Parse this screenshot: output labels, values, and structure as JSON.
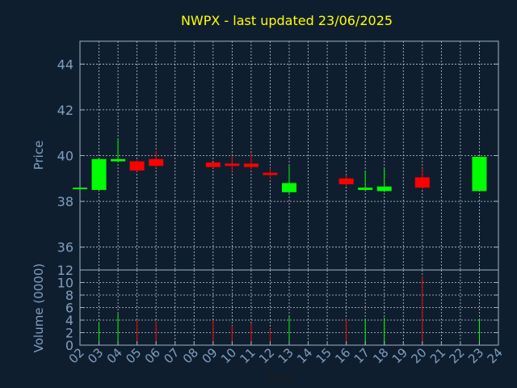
{
  "chart_data": {
    "type": "candlestick",
    "title": "NWPX - last updated 23/06/2025",
    "price_panel": {
      "ylabel": "Price",
      "ylim": [
        35,
        45
      ],
      "yticks": [
        36,
        38,
        40,
        42,
        44
      ]
    },
    "volume_panel": {
      "ylabel": "Volume (0000)",
      "ylim": [
        0,
        12
      ],
      "yticks": [
        0,
        2,
        4,
        6,
        8,
        10,
        12
      ]
    },
    "xlabel": "Day",
    "x_ticks": [
      "02",
      "03",
      "04",
      "05",
      "06",
      "07",
      "08",
      "09",
      "10",
      "11",
      "12",
      "13",
      "14",
      "15",
      "16",
      "17",
      "18",
      "19",
      "20",
      "21",
      "22",
      "23",
      "24"
    ],
    "grid": true,
    "colors": {
      "up": "#00ff00",
      "down": "#ff0000",
      "title": "#ffff00",
      "axis_text": "#7f9fbf",
      "frame": "#9db4c8",
      "grid": "#c0c8d0",
      "background": "#0f1e2f"
    },
    "candles": [
      {
        "day": "02",
        "open": 38.6,
        "high": 38.6,
        "low": 38.6,
        "close": 38.6,
        "volume": 0
      },
      {
        "day": "03",
        "open": 38.5,
        "high": 39.85,
        "low": 38.45,
        "close": 39.85,
        "volume": 3.7
      },
      {
        "day": "04",
        "open": 39.75,
        "high": 40.7,
        "low": 39.7,
        "close": 39.85,
        "volume": 5.0
      },
      {
        "day": "05",
        "open": 39.75,
        "high": 39.8,
        "low": 39.3,
        "close": 39.35,
        "volume": 4.1
      },
      {
        "day": "06",
        "open": 39.85,
        "high": 40.2,
        "low": 39.45,
        "close": 39.55,
        "volume": 3.8
      },
      {
        "day": "09",
        "open": 39.7,
        "high": 39.7,
        "low": 39.45,
        "close": 39.5,
        "volume": 4.0
      },
      {
        "day": "10",
        "open": 39.65,
        "high": 40.0,
        "low": 39.3,
        "close": 39.55,
        "volume": 3.1
      },
      {
        "day": "11",
        "open": 39.65,
        "high": 40.1,
        "low": 39.4,
        "close": 39.5,
        "volume": 3.5
      },
      {
        "day": "12",
        "open": 39.25,
        "high": 39.45,
        "low": 39.0,
        "close": 39.15,
        "volume": 2.6
      },
      {
        "day": "13",
        "open": 38.4,
        "high": 39.55,
        "low": 38.35,
        "close": 38.8,
        "volume": 4.5
      },
      {
        "day": "16",
        "open": 39.0,
        "high": 39.15,
        "low": 38.65,
        "close": 38.75,
        "volume": 4.2
      },
      {
        "day": "17",
        "open": 38.5,
        "high": 39.35,
        "low": 38.5,
        "close": 38.6,
        "volume": 4.2
      },
      {
        "day": "18",
        "open": 38.45,
        "high": 39.45,
        "low": 38.4,
        "close": 38.65,
        "volume": 4.4
      },
      {
        "day": "19",
        "open": 0,
        "high": 0,
        "low": 0,
        "close": 0,
        "volume": 0
      },
      {
        "day": "20",
        "open": 39.05,
        "high": 39.45,
        "low": 38.55,
        "close": 38.6,
        "volume": 11.0
      },
      {
        "day": "23",
        "open": 38.45,
        "high": 39.95,
        "low": 38.45,
        "close": 39.95,
        "volume": 4.2
      }
    ]
  }
}
